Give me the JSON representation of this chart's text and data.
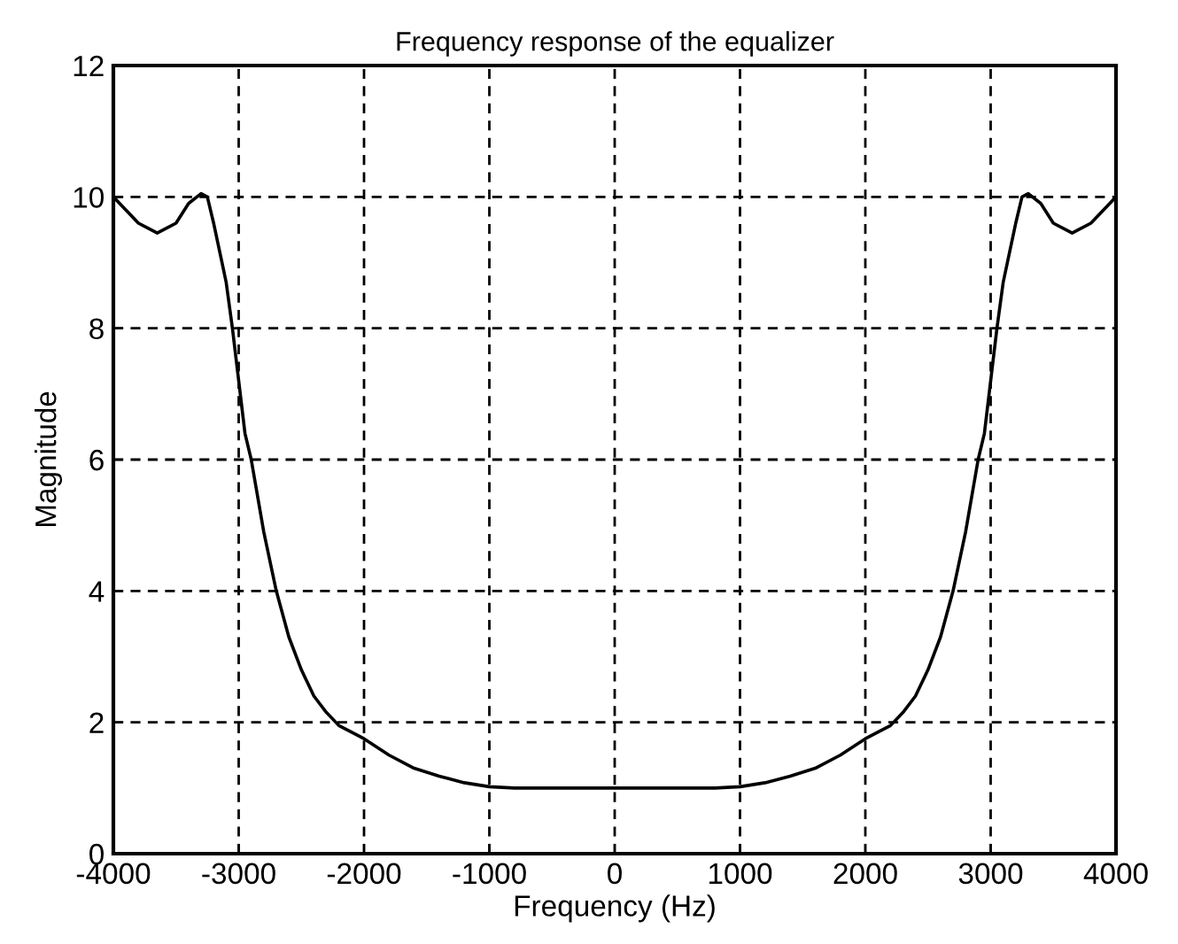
{
  "chart_data": {
    "type": "line",
    "title": "Frequency response of the equalizer",
    "xlabel": "Frequency (Hz)",
    "ylabel": "Magnitude",
    "x": [
      -4000,
      -3800,
      -3650,
      -3500,
      -3400,
      -3300,
      -3250,
      -3200,
      -3100,
      -3050,
      -3000,
      -2950,
      -2900,
      -2800,
      -2700,
      -2600,
      -2500,
      -2400,
      -2300,
      -2200,
      -2000,
      -1800,
      -1600,
      -1400,
      -1200,
      -1000,
      -800,
      0,
      800,
      1000,
      1200,
      1400,
      1600,
      1800,
      2000,
      2200,
      2300,
      2400,
      2500,
      2600,
      2700,
      2800,
      2900,
      2950,
      3000,
      3050,
      3100,
      3200,
      3250,
      3300,
      3400,
      3500,
      3650,
      3800,
      4000
    ],
    "series": [
      {
        "color": "#000000",
        "values": [
          10.0,
          9.6,
          9.45,
          9.6,
          9.9,
          10.05,
          10.0,
          9.6,
          8.7,
          8.0,
          7.2,
          6.4,
          6.0,
          4.9,
          4.0,
          3.3,
          2.8,
          2.4,
          2.15,
          1.95,
          1.75,
          1.5,
          1.3,
          1.18,
          1.08,
          1.02,
          1.0,
          1.0,
          1.0,
          1.02,
          1.08,
          1.18,
          1.3,
          1.5,
          1.75,
          1.95,
          2.15,
          2.4,
          2.8,
          3.3,
          4.0,
          4.9,
          6.0,
          6.4,
          7.2,
          8.0,
          8.7,
          9.6,
          10.0,
          10.05,
          9.9,
          9.6,
          9.45,
          9.6,
          10.0
        ]
      }
    ],
    "xlim": [
      -4000,
      4000
    ],
    "ylim": [
      0,
      12
    ],
    "xticks": [
      -4000,
      -3000,
      -2000,
      -1000,
      0,
      1000,
      2000,
      3000,
      4000
    ],
    "yticks": [
      0,
      2,
      4,
      6,
      8,
      10,
      12
    ],
    "grid": true,
    "line_style": "solid",
    "marker": "none"
  }
}
